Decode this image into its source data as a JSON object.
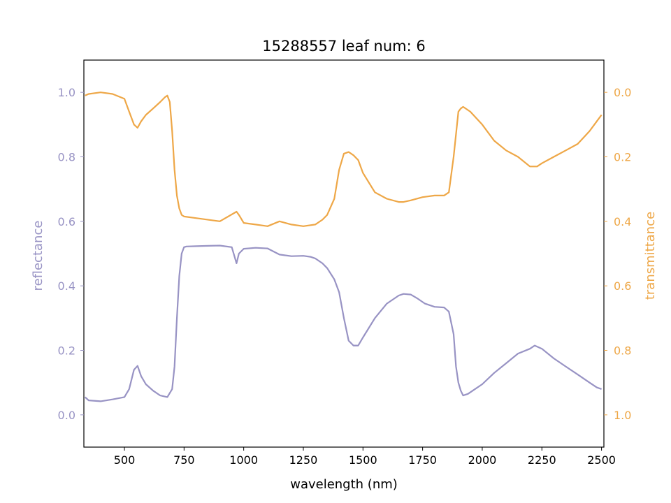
{
  "chart_data": {
    "type": "line",
    "title": "15288557 leaf num: 6",
    "xlabel": "wavelength (nm)",
    "ylabel_left": "reflectance",
    "ylabel_right": "transmittance",
    "xlim": [
      330,
      2510
    ],
    "ylim_left": [
      -0.1,
      1.1
    ],
    "ylim_right_inverted": [
      1.1,
      -0.1
    ],
    "grid": false,
    "x_ticks": [
      500,
      750,
      1000,
      1250,
      1500,
      1750,
      2000,
      2250,
      2500
    ],
    "y_ticks_left": [
      0.0,
      0.2,
      0.4,
      0.6,
      0.8,
      1.0
    ],
    "y_ticks_right": [
      0.0,
      0.2,
      0.4,
      0.6,
      0.8,
      1.0
    ],
    "colors": {
      "reflectance": "#9893c4",
      "transmittance": "#eea747"
    },
    "series": [
      {
        "name": "reflectance",
        "axis": "left",
        "x": [
          335,
          350,
          400,
          450,
          500,
          520,
          540,
          555,
          570,
          590,
          620,
          650,
          680,
          700,
          710,
          720,
          730,
          740,
          750,
          760,
          800,
          850,
          900,
          950,
          970,
          980,
          1000,
          1050,
          1100,
          1150,
          1200,
          1250,
          1280,
          1300,
          1330,
          1350,
          1380,
          1400,
          1420,
          1440,
          1460,
          1480,
          1500,
          1550,
          1600,
          1650,
          1670,
          1700,
          1730,
          1760,
          1800,
          1840,
          1860,
          1880,
          1890,
          1900,
          1910,
          1920,
          1940,
          1960,
          2000,
          2050,
          2100,
          2150,
          2200,
          2220,
          2250,
          2300,
          2350,
          2400,
          2450,
          2480,
          2500
        ],
        "y": [
          0.055,
          0.045,
          0.042,
          0.048,
          0.055,
          0.08,
          0.14,
          0.152,
          0.12,
          0.095,
          0.075,
          0.06,
          0.055,
          0.08,
          0.15,
          0.3,
          0.43,
          0.5,
          0.52,
          0.522,
          0.523,
          0.524,
          0.525,
          0.52,
          0.47,
          0.5,
          0.515,
          0.518,
          0.516,
          0.497,
          0.492,
          0.493,
          0.49,
          0.485,
          0.47,
          0.455,
          0.42,
          0.38,
          0.3,
          0.23,
          0.215,
          0.215,
          0.24,
          0.3,
          0.345,
          0.37,
          0.375,
          0.373,
          0.36,
          0.345,
          0.335,
          0.333,
          0.32,
          0.25,
          0.15,
          0.1,
          0.075,
          0.06,
          0.065,
          0.075,
          0.095,
          0.13,
          0.16,
          0.19,
          0.205,
          0.215,
          0.205,
          0.175,
          0.15,
          0.125,
          0.1,
          0.085,
          0.08
        ]
      },
      {
        "name": "transmittance",
        "axis": "right",
        "x": [
          335,
          350,
          400,
          450,
          500,
          520,
          540,
          555,
          570,
          590,
          620,
          650,
          670,
          680,
          690,
          700,
          710,
          720,
          730,
          740,
          750,
          800,
          900,
          970,
          980,
          1000,
          1050,
          1100,
          1150,
          1200,
          1250,
          1300,
          1330,
          1350,
          1380,
          1400,
          1420,
          1440,
          1460,
          1480,
          1500,
          1550,
          1600,
          1650,
          1670,
          1700,
          1750,
          1800,
          1840,
          1860,
          1880,
          1890,
          1900,
          1910,
          1920,
          1950,
          2000,
          2050,
          2100,
          2150,
          2200,
          2230,
          2250,
          2300,
          2350,
          2400,
          2450,
          2480,
          2500
        ],
        "y": [
          0.01,
          0.005,
          0.0,
          0.005,
          0.02,
          0.06,
          0.1,
          0.11,
          0.09,
          0.07,
          0.05,
          0.03,
          0.015,
          0.01,
          0.03,
          0.12,
          0.24,
          0.32,
          0.36,
          0.38,
          0.385,
          0.39,
          0.4,
          0.37,
          0.38,
          0.405,
          0.41,
          0.415,
          0.4,
          0.41,
          0.415,
          0.41,
          0.395,
          0.38,
          0.33,
          0.24,
          0.19,
          0.185,
          0.195,
          0.21,
          0.25,
          0.31,
          0.33,
          0.34,
          0.34,
          0.335,
          0.325,
          0.32,
          0.32,
          0.31,
          0.2,
          0.13,
          0.06,
          0.05,
          0.045,
          0.06,
          0.1,
          0.15,
          0.18,
          0.2,
          0.23,
          0.23,
          0.22,
          0.2,
          0.18,
          0.16,
          0.12,
          0.09,
          0.07
        ]
      }
    ]
  }
}
